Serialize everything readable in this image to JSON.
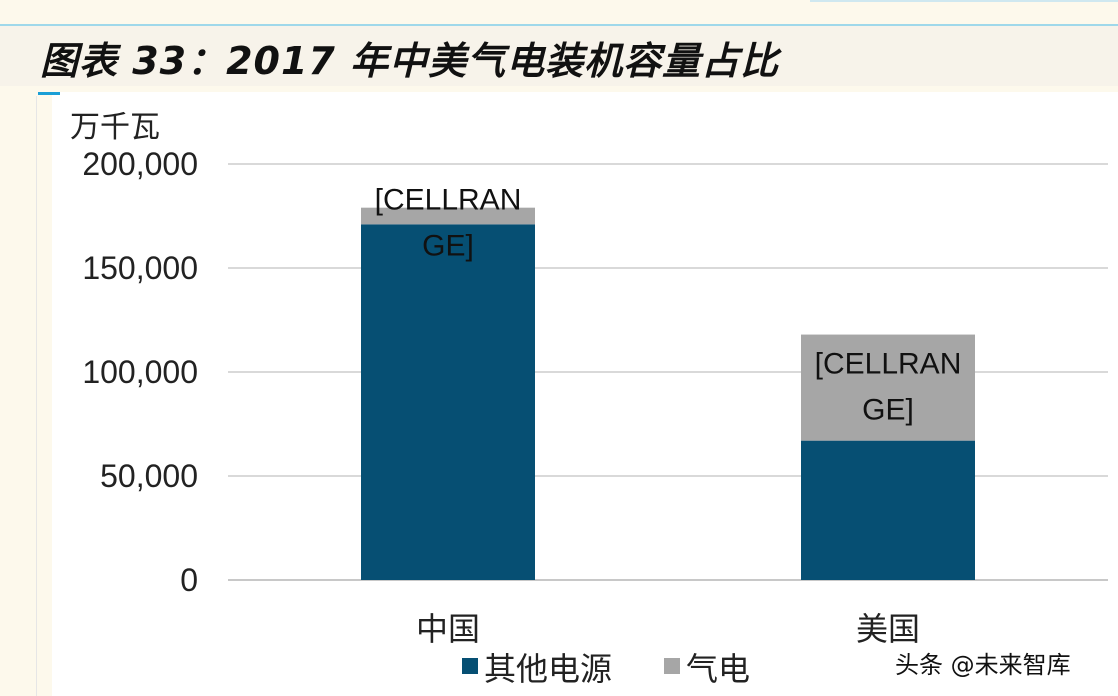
{
  "header": {
    "title": "图表 33：2017 年中美气电装机容量占比"
  },
  "watermark": "头条 @未来智库",
  "chart_data": {
    "type": "bar",
    "stacked": true,
    "unit_label": "万千瓦",
    "categories": [
      "中国",
      "美国"
    ],
    "series": [
      {
        "name": "其他电源",
        "values": [
          171000,
          67000
        ],
        "color": "#064f73"
      },
      {
        "name": "气电",
        "values": [
          8000,
          51000
        ],
        "color": "#a6a6a6"
      }
    ],
    "data_labels": [
      "[CELLRANGE]",
      "[CELLRANGE]"
    ],
    "ylim": [
      0,
      200000
    ],
    "yticks": [
      0,
      50000,
      100000,
      150000,
      200000
    ],
    "ytick_labels": [
      "0",
      "50,000",
      "100,000",
      "150,000",
      "200,000"
    ],
    "grid": true,
    "legend_position": "bottom"
  }
}
